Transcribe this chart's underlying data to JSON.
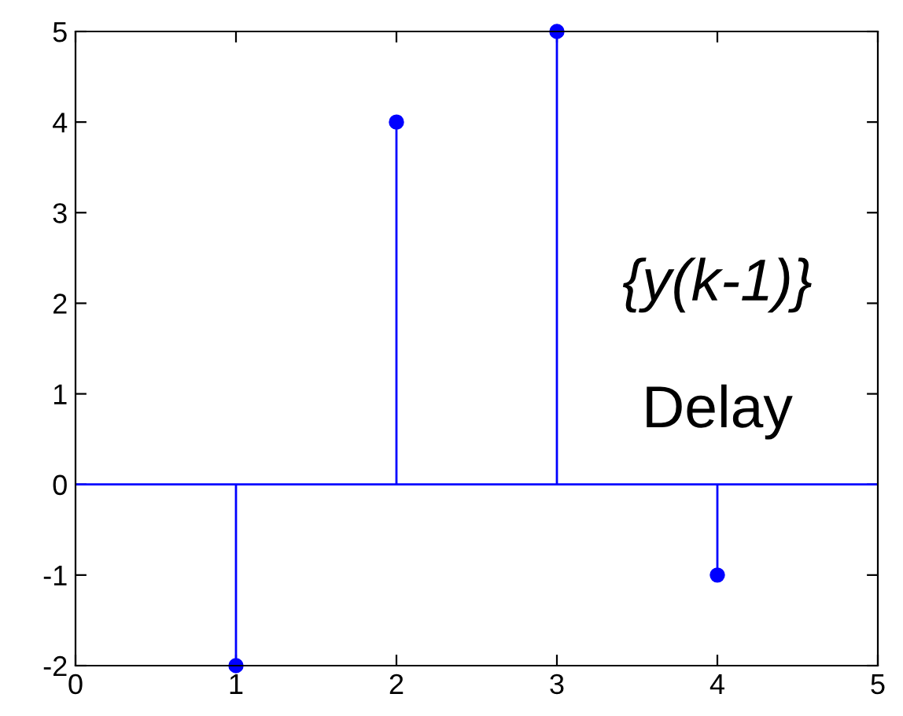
{
  "chart_data": {
    "type": "lollipop",
    "x": [
      1,
      2,
      3,
      4
    ],
    "values": [
      -2,
      4,
      5,
      -1
    ],
    "color": "#0000ff",
    "marker": "circle",
    "xlim": [
      0,
      5
    ],
    "xticks": [
      0,
      1,
      2,
      3,
      4,
      5
    ],
    "ylim": [
      -2,
      5
    ],
    "yticks": [
      -2,
      -1,
      0,
      1,
      2,
      3,
      4,
      5
    ],
    "ref_lines": [
      {
        "axis": "y",
        "value": 0,
        "color": "#0000ff"
      }
    ],
    "annotations": [
      "{y(k-1)}",
      "Delay"
    ]
  }
}
